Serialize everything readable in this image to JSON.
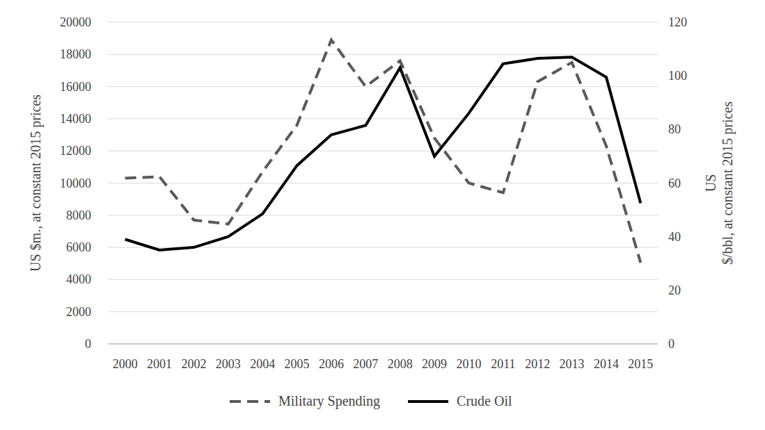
{
  "chart_data": {
    "type": "line",
    "categories": [
      "2000",
      "2001",
      "2002",
      "2003",
      "2004",
      "2005",
      "2006",
      "2007",
      "2008",
      "2009",
      "2010",
      "2011",
      "2012",
      "2013",
      "2014",
      "2015"
    ],
    "y_label": "US $m., at constant 2015 prices",
    "y2_label": "US $/bbl, at constant 2015 prices",
    "ylim": [
      0,
      20000
    ],
    "yticks": [
      0,
      2000,
      4000,
      6000,
      8000,
      10000,
      12000,
      14000,
      16000,
      18000,
      20000
    ],
    "y2lim": [
      0,
      120
    ],
    "y2ticks": [
      0,
      20,
      40,
      60,
      80,
      100,
      120
    ],
    "grid": true,
    "legend": "bottom",
    "series": [
      {
        "name": "Military Spending",
        "color": "#595959",
        "line_style": "dashed",
        "values": [
          10300,
          10400,
          7700,
          7450,
          10700,
          13600,
          18900,
          16000,
          17600,
          12800,
          10000,
          9400,
          16300,
          17500,
          12300,
          5050
        ]
      },
      {
        "name": "Crude Oil",
        "color": "#000000",
        "line_style": "solid",
        "axis": "y2",
        "values": [
          39,
          35,
          36,
          40,
          48.5,
          66.5,
          78,
          81.5,
          103,
          70,
          86,
          104.5,
          106.5,
          107,
          99.5,
          52.5
        ]
      }
    ]
  }
}
